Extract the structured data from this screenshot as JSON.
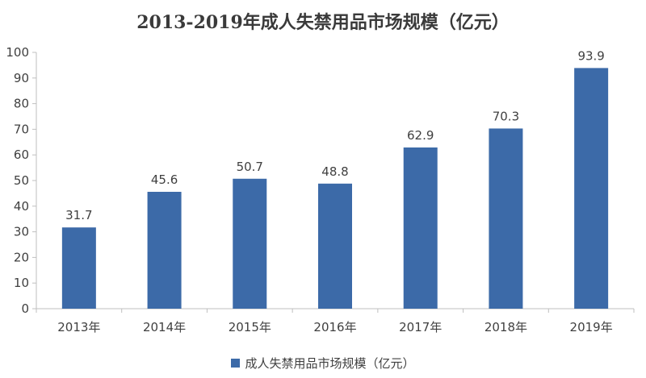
{
  "chart_data": {
    "type": "bar",
    "title": "2013-2019年成人失禁用品市场规模（亿元）",
    "categories": [
      "2013年",
      "2014年",
      "2015年",
      "2016年",
      "2017年",
      "2018年",
      "2019年"
    ],
    "series": [
      {
        "name": "成人失禁用品市场规模（亿元）",
        "values": [
          31.7,
          45.6,
          50.7,
          48.8,
          62.9,
          70.3,
          93.9
        ],
        "color": "#3c6aa8"
      }
    ],
    "data_labels": [
      "31.7",
      "45.6",
      "50.7",
      "48.8",
      "62.9",
      "70.3",
      "93.9"
    ],
    "ylim": [
      0,
      100
    ],
    "y_ticks": [
      "0",
      "10",
      "20",
      "30",
      "40",
      "50",
      "60",
      "70",
      "80",
      "90",
      "100"
    ],
    "xlabel": "",
    "ylabel": "",
    "grid": false,
    "legend_position": "bottom"
  }
}
